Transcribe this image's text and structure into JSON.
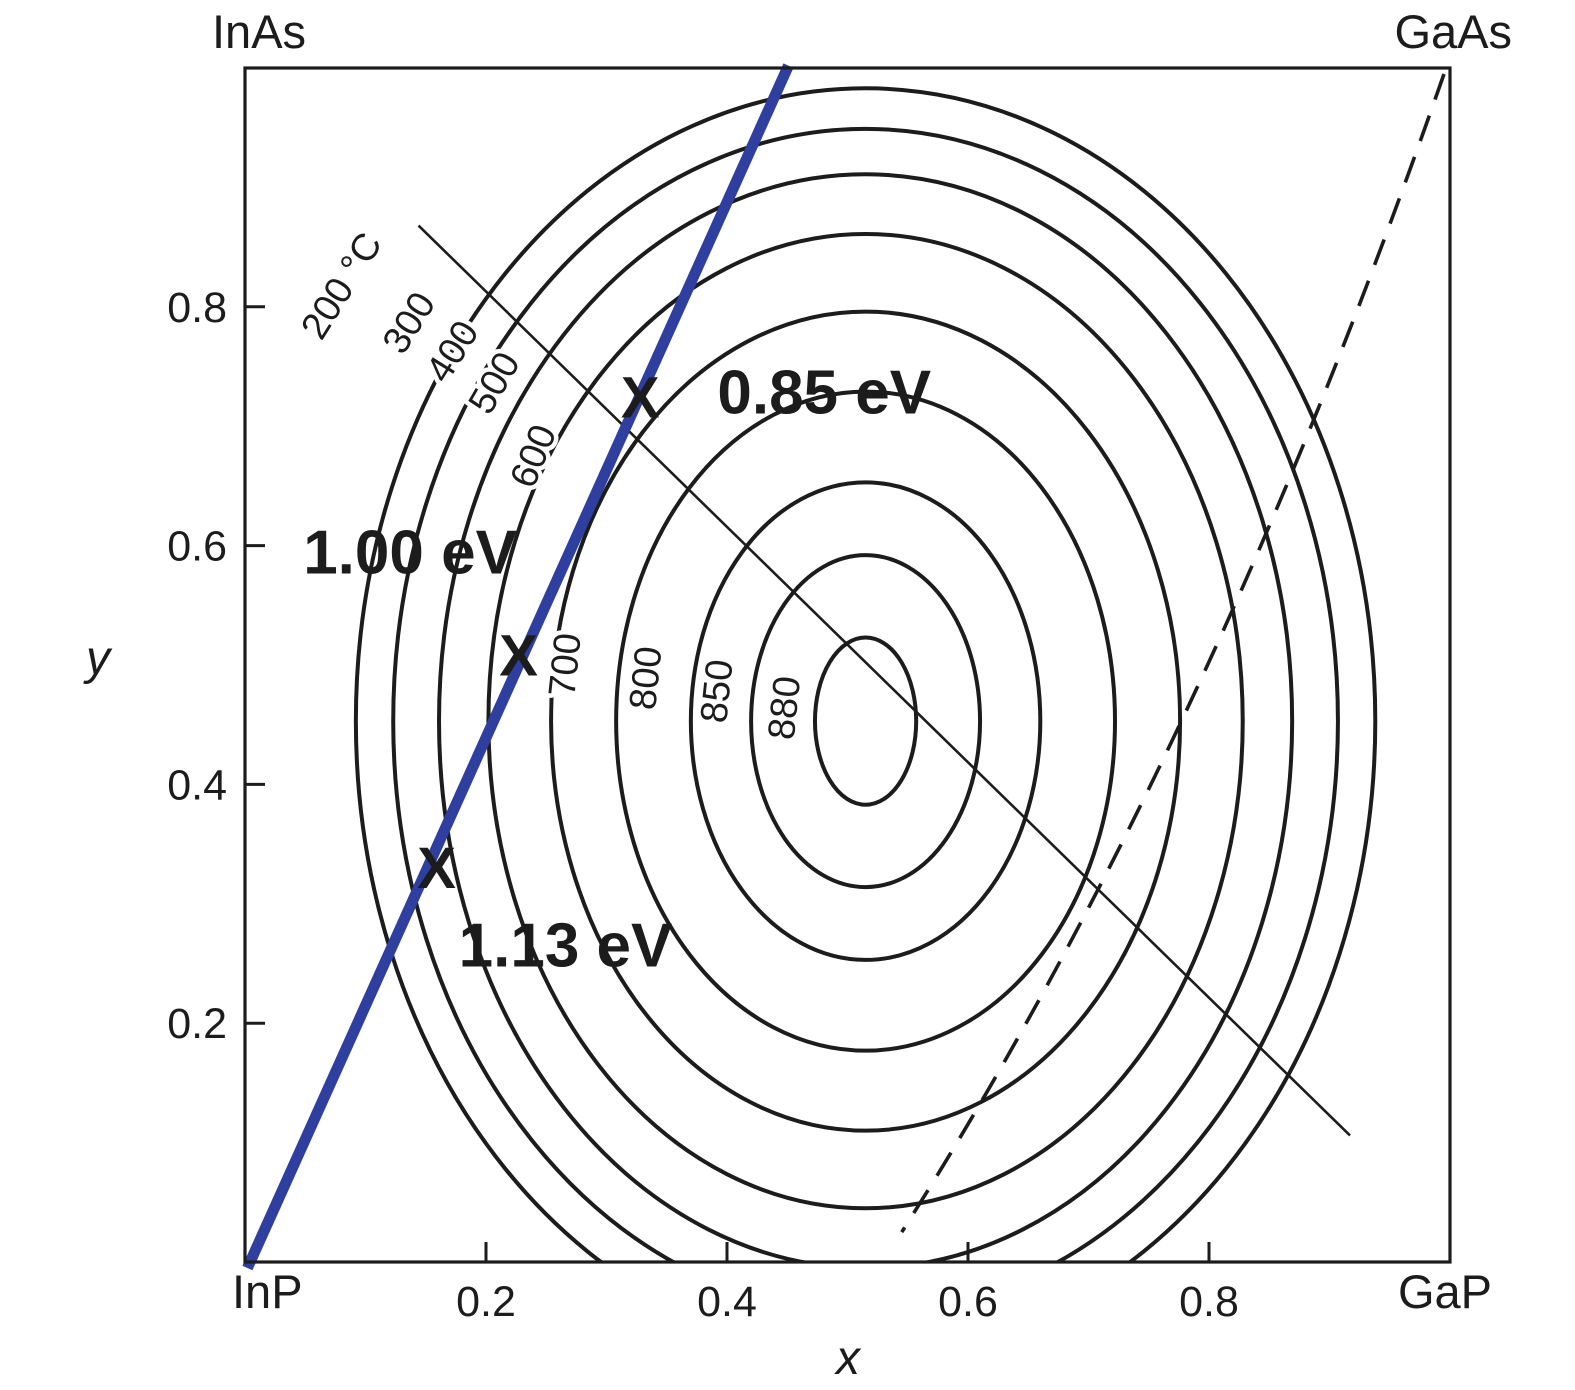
{
  "figure": {
    "corners": {
      "top_left": "InAs",
      "top_right": "GaAs",
      "bottom_left": "InP",
      "bottom_right": "GaP"
    },
    "x_axis": {
      "label": "x",
      "tick_labels": [
        "0.2",
        "0.4",
        "0.6",
        "0.8"
      ],
      "tick_values": [
        0.2,
        0.4,
        0.6,
        0.8
      ]
    },
    "y_axis": {
      "label": "y",
      "tick_labels": [
        "0.2",
        "0.4",
        "0.6",
        "0.8"
      ],
      "tick_values": [
        0.2,
        0.4,
        0.6,
        0.8
      ]
    }
  },
  "chart_data": {
    "type": "contour",
    "x_range": [
      0,
      1
    ],
    "y_range": [
      0,
      1
    ],
    "grid": false,
    "corner_labels": {
      "top_left": "InAs",
      "top_right": "GaAs",
      "bottom_left": "InP",
      "bottom_right": "GaP"
    },
    "contour_center": {
      "x": 0.515,
      "y": 0.453
    },
    "isotherms": [
      {
        "label": "200 °C",
        "temperature_c": 200,
        "rx": 0.423,
        "ry": 0.53,
        "label_pos": {
          "x": 0.089,
          "y": 0.812
        },
        "label_rotation": -58
      },
      {
        "label": "300",
        "temperature_c": 300,
        "rx": 0.392,
        "ry": 0.496,
        "label_pos": {
          "x": 0.145,
          "y": 0.781
        },
        "label_rotation": -58
      },
      {
        "label": "400",
        "temperature_c": 400,
        "rx": 0.354,
        "ry": 0.458,
        "label_pos": {
          "x": 0.181,
          "y": 0.757
        },
        "label_rotation": -58
      },
      {
        "label": "500",
        "temperature_c": 500,
        "rx": 0.313,
        "ry": 0.408,
        "label_pos": {
          "x": 0.216,
          "y": 0.731
        },
        "label_rotation": -60
      },
      {
        "label": "600",
        "temperature_c": 600,
        "rx": 0.261,
        "ry": 0.343,
        "label_pos": {
          "x": 0.249,
          "y": 0.671
        },
        "label_rotation": -68
      },
      {
        "label": "700",
        "temperature_c": 700,
        "rx": 0.207,
        "ry": 0.276,
        "label_pos": {
          "x": 0.276,
          "y": 0.499
        },
        "label_rotation": -84
      },
      {
        "label": "800",
        "temperature_c": 800,
        "rx": 0.145,
        "ry": 0.2,
        "label_pos": {
          "x": 0.343,
          "y": 0.488
        },
        "label_rotation": -84
      },
      {
        "label": "850",
        "temperature_c": 850,
        "rx": 0.095,
        "ry": 0.139,
        "label_pos": {
          "x": 0.402,
          "y": 0.477
        },
        "label_rotation": -84
      },
      {
        "label": "880",
        "temperature_c": 880,
        "rx": 0.042,
        "ry": 0.07,
        "label_pos": {
          "x": 0.458,
          "y": 0.463
        },
        "label_rotation": -84
      }
    ],
    "temperature_label_line": {
      "x1": 0.144,
      "y1": 0.868,
      "x2": 0.917,
      "y2": 0.106
    },
    "dashed_boundary": {
      "start": {
        "x": 0.995,
        "y": 0.995
      },
      "control": {
        "x": 0.8,
        "y": 0.43
      },
      "end": {
        "x": 0.545,
        "y": 0.025
      }
    },
    "lattice_match_line": {
      "x1": 0.002,
      "y1": -0.005,
      "x2": 0.451,
      "y2": 1.002
    },
    "markers": [
      {
        "glyph": "X",
        "x": 0.328,
        "y": 0.724,
        "label": "0.85 eV",
        "label_pos": {
          "x": 0.392,
          "y": 0.729
        },
        "label_anchor": "start"
      },
      {
        "glyph": "X",
        "x": 0.227,
        "y": 0.508,
        "label": "1.00 eV",
        "label_pos": {
          "x": 0.137,
          "y": 0.595
        },
        "label_anchor": "middle"
      },
      {
        "glyph": "X",
        "x": 0.159,
        "y": 0.33,
        "label": "1.13 eV",
        "label_pos": {
          "x": 0.266,
          "y": 0.266
        },
        "label_anchor": "middle"
      }
    ],
    "colors": {
      "contour": "#1c1c1c",
      "axis": "#1c1c1c",
      "lattice_line": "#2e3f9f",
      "marker_red": "#e3201b"
    }
  }
}
